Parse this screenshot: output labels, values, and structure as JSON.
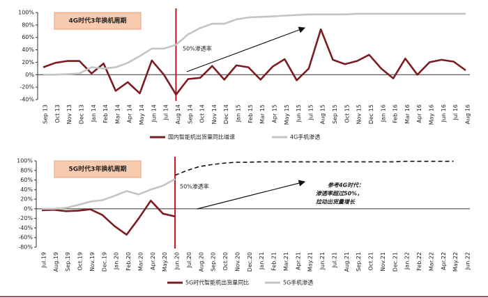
{
  "chart_data": [
    {
      "type": "line",
      "title": "4G时代3年换机周期",
      "annotation": "50%渗透率",
      "marker_category": "Aug 14",
      "categories": [
        "Sep 13",
        "Oct 13",
        "Nov 13",
        "Dec 13",
        "Jan 14",
        "Feb 14",
        "Mar 14",
        "Apr 14",
        "May 14",
        "Jun 14",
        "Jul 14",
        "Aug 14",
        "Sep 14",
        "Oct 14",
        "Nov 14",
        "Dec 14",
        "Jan 15",
        "Feb 15",
        "Mar 15",
        "Apr 15",
        "May 15",
        "Jun 15",
        "Jul 15",
        "Aug 15",
        "Sep 15",
        "Oct 15",
        "Nov 15",
        "Dec 15",
        "Jan 16",
        "Feb 16",
        "Mar 16",
        "Apr 16",
        "May 16",
        "Jun 16",
        "Jul 16",
        "Aug 16"
      ],
      "series": [
        {
          "name": "国内智能机出货量同比增速",
          "color": "#7b1c22",
          "values": [
            12,
            19,
            22,
            22,
            2,
            18,
            -26,
            -12,
            -30,
            23,
            0,
            -32,
            -7,
            -5,
            14,
            -8,
            15,
            12,
            -8,
            13,
            25,
            -9,
            10,
            73,
            24,
            17,
            22,
            32,
            10,
            -6,
            26,
            0,
            20,
            24,
            21,
            7
          ]
        },
        {
          "name": "4G手机渗透",
          "color": "#c4c4c0",
          "values": [
            0,
            0,
            1,
            2,
            12,
            10,
            12,
            19,
            30,
            42,
            42,
            48,
            65,
            75,
            82,
            82,
            89,
            92,
            93,
            94,
            95,
            96,
            97,
            97,
            97,
            97,
            98,
            98,
            98,
            98,
            98,
            98,
            98,
            98,
            98,
            98
          ]
        }
      ],
      "ylim": [
        -40,
        100
      ],
      "yticks": [
        {
          "value": -40,
          "label": "-40%"
        },
        {
          "value": -20,
          "label": "-20%"
        },
        {
          "value": 0,
          "label": "0%"
        },
        {
          "value": 20,
          "label": "20%"
        },
        {
          "value": 40,
          "label": "40%"
        },
        {
          "value": 60,
          "label": "60%"
        },
        {
          "value": 80,
          "label": "80%"
        },
        {
          "value": 100,
          "label": "100%"
        }
      ]
    },
    {
      "type": "line",
      "title": "5G时代3年换机周期",
      "annotation": "50%渗透率",
      "note": [
        "参考4G时代：",
        "渗透率超过50%，",
        "拉动出货量增长"
      ],
      "marker_category": "Jun.20",
      "categories": [
        "Jul.19",
        "Aug.19",
        "Sep.19",
        "Oct.19",
        "Nov.19",
        "Dec.19",
        "Jan.20",
        "Feb.20",
        "Mar.20",
        "Apr.20",
        "May.20",
        "Jun.20",
        "Jul.20",
        "Aug.20",
        "Sep.20",
        "Oct.20",
        "Nov.20",
        "Dec.20",
        "Jan.21",
        "Feb.21",
        "Mar.21",
        "Apr.21",
        "May.21",
        "Jun.21",
        "Jul.21",
        "Aug.21",
        "Sep.21",
        "Oct.21",
        "Nov.21",
        "Dec.21",
        "Jan.22",
        "Feb.22",
        "Mar.22",
        "Apr.22",
        "May.22",
        "Jun.22"
      ],
      "series": [
        {
          "name": "5G时代智能机出货量同比",
          "color": "#7b1c22",
          "values": [
            -3,
            -2,
            -5,
            -4,
            -1,
            -13,
            -36,
            -54,
            -20,
            17,
            -10,
            -16,
            null,
            null,
            null,
            null,
            null,
            null,
            null,
            null,
            null,
            null,
            null,
            null,
            null,
            null,
            null,
            null,
            null,
            null,
            null,
            null,
            null,
            null,
            null,
            null
          ]
        },
        {
          "name": "5G手机渗透",
          "color": "#c4c4c0",
          "values": [
            0,
            0,
            2,
            8,
            15,
            18,
            27,
            37,
            30,
            40,
            48,
            62,
            null,
            null,
            null,
            null,
            null,
            null,
            null,
            null,
            null,
            null,
            null,
            null,
            null,
            null,
            null,
            null,
            null,
            null,
            null,
            null,
            null,
            null,
            null,
            null
          ]
        },
        {
          "color": "#111111",
          "dashed": true,
          "values": [
            null,
            null,
            null,
            null,
            null,
            null,
            null,
            null,
            null,
            null,
            null,
            70,
            80,
            88,
            92,
            95,
            97,
            97,
            98,
            98,
            98,
            98,
            98,
            98,
            98,
            98,
            98,
            98,
            98,
            98,
            99,
            99,
            99,
            99,
            99,
            null
          ]
        }
      ],
      "ylim": [
        -80,
        100
      ],
      "yticks": [
        {
          "value": -80,
          "label": "-80%"
        },
        {
          "value": -60,
          "label": "-60%"
        },
        {
          "value": -40,
          "label": "-40%"
        },
        {
          "value": -20,
          "label": "-20%"
        },
        {
          "value": 0,
          "label": "0%"
        },
        {
          "value": 20,
          "label": "20%"
        },
        {
          "value": 40,
          "label": "40%"
        },
        {
          "value": 60,
          "label": "60%"
        },
        {
          "value": 80,
          "label": "80%"
        },
        {
          "value": 100,
          "label": "100%"
        }
      ]
    }
  ]
}
